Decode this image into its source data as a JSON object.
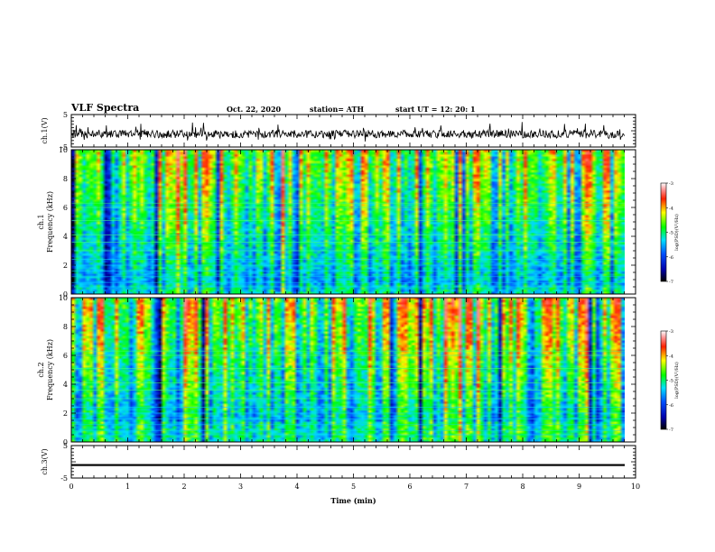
{
  "header": {
    "title": "VLF Spectra",
    "date": "Oct. 22, 2020",
    "station": "station= ATH",
    "start_ut": "start  UT  =   12: 20: 1"
  },
  "chart_data": [
    {
      "type": "line",
      "panel": "ch1-waveform",
      "ylabel": "ch.1(V)",
      "ylim": [
        -5,
        5
      ],
      "yticks": [
        "5",
        "-5"
      ],
      "xlim": [
        0,
        10
      ],
      "description_values": {
        "baseline": -1.0,
        "spread": 1.2
      }
    },
    {
      "type": "heatmap",
      "panel": "ch1-spectrogram",
      "ylabel_top": "ch.1",
      "ylabel": "Frequency  (kHz)",
      "ylim": [
        0,
        10
      ],
      "yticks": [
        "0",
        "2",
        "4",
        "6",
        "8",
        "10"
      ],
      "xlim": [
        0,
        10
      ],
      "colorbar": {
        "label": "log(PSD)(V²/Hz)",
        "range": [
          -7,
          -3
        ],
        "ticks": [
          "-3",
          "-4",
          "-5",
          "-6",
          "-7"
        ]
      }
    },
    {
      "type": "heatmap",
      "panel": "ch2-spectrogram",
      "ylabel_top": "ch.2",
      "ylabel": "Frequency  (kHz)",
      "ylim": [
        0,
        10
      ],
      "yticks": [
        "0",
        "2",
        "4",
        "6",
        "8",
        "10"
      ],
      "xlim": [
        0,
        10
      ],
      "colorbar": {
        "label": "log(PSD)(V²/Hz)",
        "range": [
          -7,
          -3
        ],
        "ticks": [
          "-3",
          "-4",
          "-5",
          "-6",
          "-7"
        ]
      }
    },
    {
      "type": "line",
      "panel": "ch3-waveform",
      "ylabel": "ch.3(V)",
      "ylim": [
        -5,
        5
      ],
      "yticks": [
        "5",
        "-5"
      ],
      "xlim": [
        0,
        10
      ],
      "description_values": {
        "baseline": -1.0,
        "spread": 0.6
      }
    }
  ],
  "xaxis": {
    "label": "Time  (min)",
    "ticks": [
      "0",
      "1",
      "2",
      "3",
      "4",
      "5",
      "6",
      "7",
      "8",
      "9",
      "10"
    ]
  }
}
